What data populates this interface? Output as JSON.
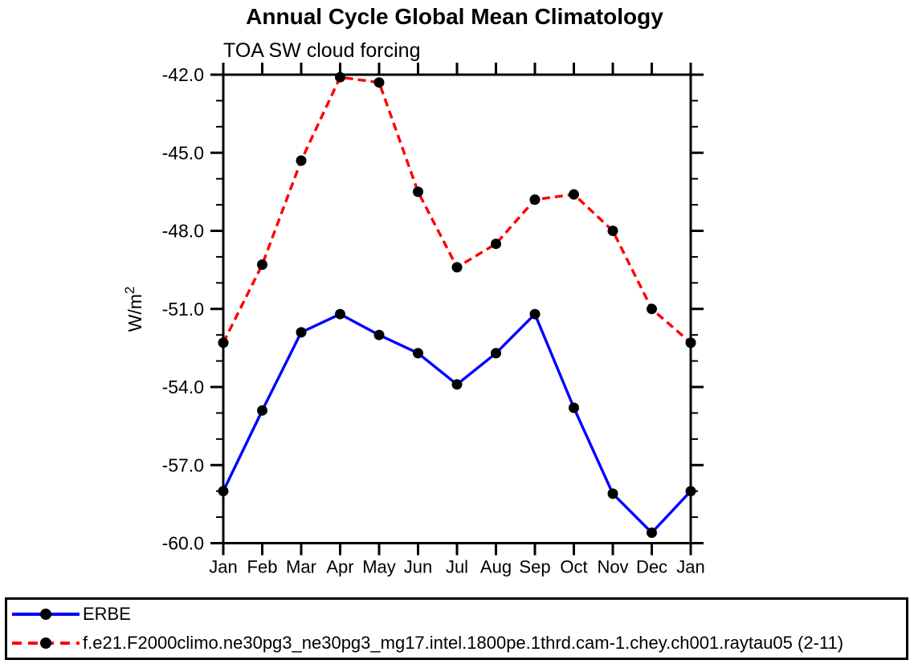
{
  "figure": {
    "background": "#ffffff",
    "axis_color": "#000000",
    "marker_color": "#000000"
  },
  "chart_data": {
    "type": "line",
    "title": "Annual Cycle Global Mean Climatology",
    "subtitle": "TOA SW cloud forcing",
    "ylabel_base": "W/m",
    "ylabel_sup": "2",
    "x_categories": [
      "Jan",
      "Feb",
      "Mar",
      "Apr",
      "May",
      "Jun",
      "Jul",
      "Aug",
      "Sep",
      "Oct",
      "Nov",
      "Dec",
      "Jan"
    ],
    "ylim": [
      -60,
      -42
    ],
    "y_major_ticks": [
      -42,
      -45,
      -48,
      -51,
      -54,
      -57,
      -60
    ],
    "y_major_tick_labels": [
      "-42.0",
      "-45.0",
      "-48.0",
      "-51.0",
      "-54.0",
      "-57.0",
      "-60.0"
    ],
    "y_minor_tick_step": 1,
    "grid": false,
    "legend_position": "bottom-box",
    "series": [
      {
        "name": "ERBE",
        "color": "#0000ff",
        "line_style": "solid",
        "marker": "filled-circle",
        "values": [
          -58.0,
          -54.9,
          -51.9,
          -51.2,
          -52.0,
          -52.7,
          -53.9,
          -52.7,
          -51.2,
          -54.8,
          -58.1,
          -59.6,
          -58.0
        ]
      },
      {
        "name": "f.e21.F2000climo.ne30pg3_ne30pg3_mg17.intel.1800pe.1thrd.cam-1.chey.ch001.raytau05 (2-11)",
        "color": "#ff0000",
        "line_style": "dashed",
        "marker": "filled-circle",
        "values": [
          -52.3,
          -49.3,
          -45.3,
          -42.1,
          -42.3,
          -46.5,
          -49.4,
          -48.5,
          -46.8,
          -46.6,
          -48.0,
          -51.0,
          -52.3
        ]
      }
    ]
  }
}
